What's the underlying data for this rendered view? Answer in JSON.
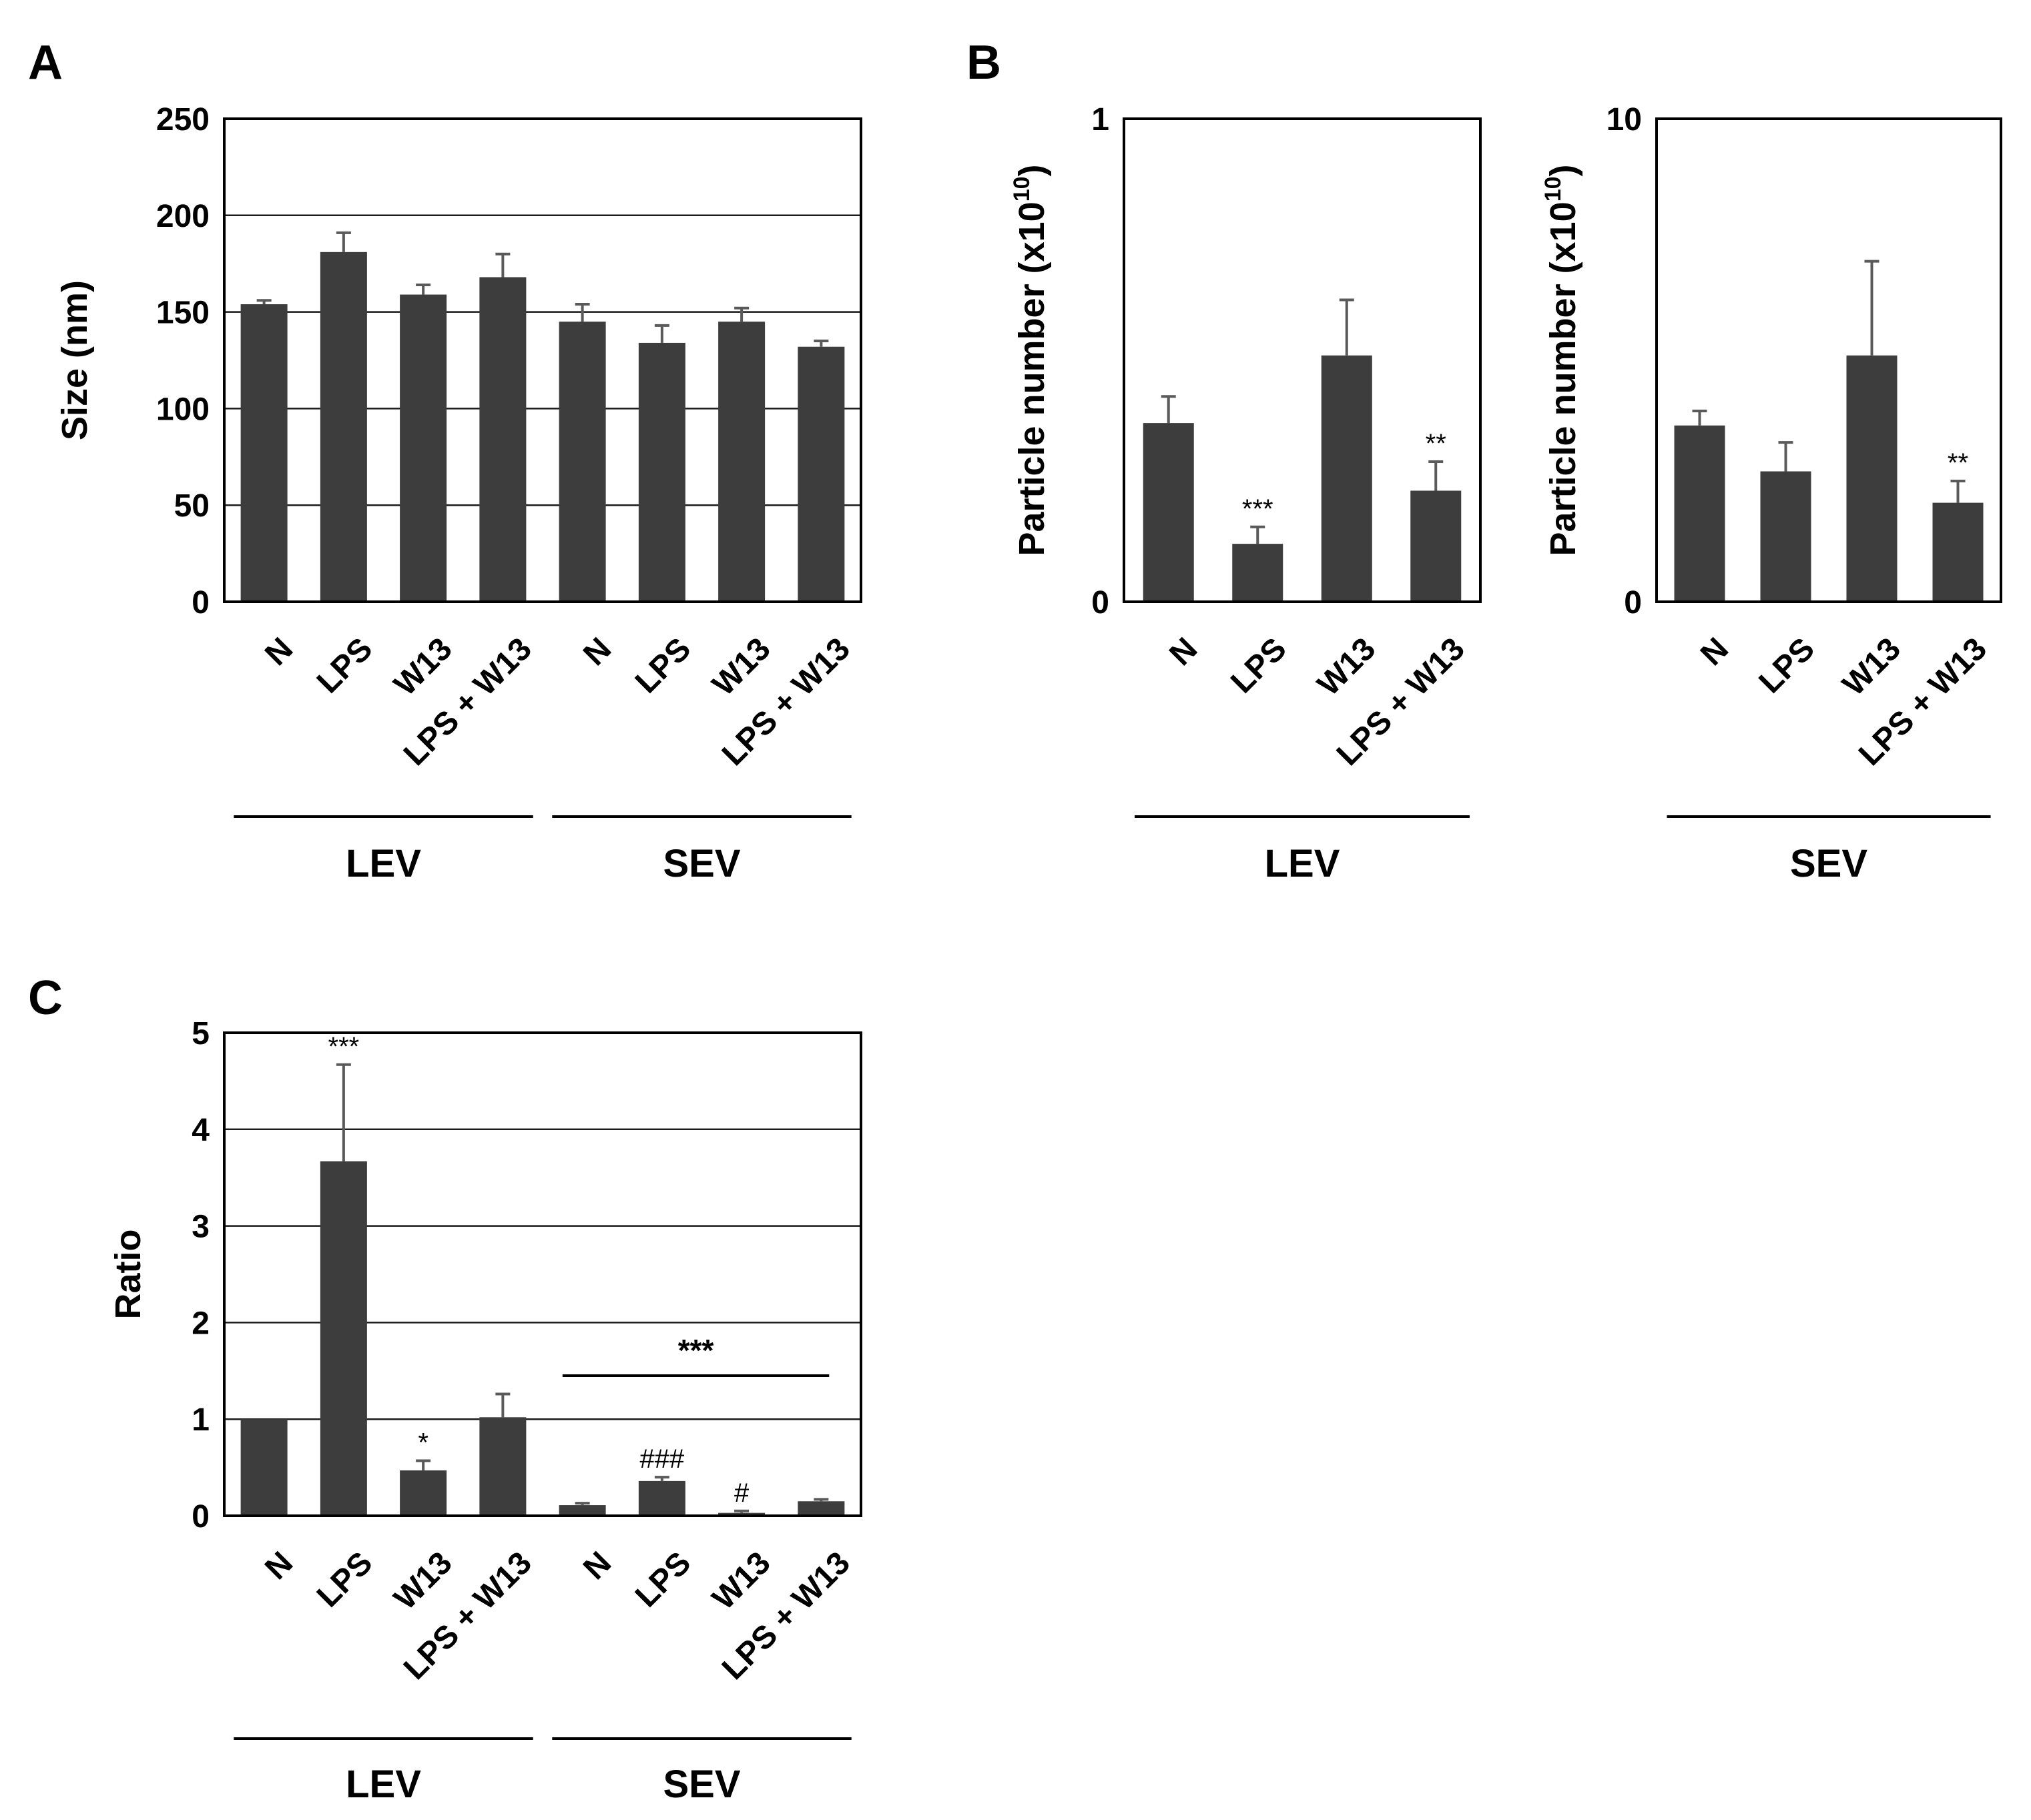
{
  "colors": {
    "bar": "#3d3d3d",
    "error_bar": "#5a5a5a",
    "frame": "#000000",
    "gridline": "#1a1a1a"
  },
  "panel_letters": {
    "a": "A",
    "b": "B",
    "c": "C"
  },
  "chart_data": [
    {
      "id": "A",
      "type": "bar",
      "categories": [
        "N",
        "LPS",
        "W13",
        "LPS + W13",
        "N",
        "LPS",
        "W13",
        "LPS + W13"
      ],
      "groups": [
        {
          "label": "LEV",
          "members": [
            0,
            1,
            2,
            3
          ]
        },
        {
          "label": "SEV",
          "members": [
            4,
            5,
            6,
            7
          ]
        }
      ],
      "series": [
        {
          "values": [
            154,
            181,
            159,
            168,
            145,
            134,
            145,
            132
          ],
          "errors": [
            2,
            10,
            5,
            12,
            9,
            9,
            7,
            3
          ]
        }
      ],
      "ylabel": "Size (nm)",
      "ylim": [
        0,
        250
      ],
      "yticks": [
        0,
        50,
        100,
        150,
        200,
        250
      ],
      "ytick_labels": [
        "0",
        "50",
        "100",
        "150",
        "200",
        "250"
      ],
      "gridlines": [
        50,
        100,
        150,
        200
      ],
      "annotations": []
    },
    {
      "id": "B-LEV",
      "type": "bar",
      "categories": [
        "N",
        "LPS",
        "W13",
        "LPS + W13"
      ],
      "groups": [
        {
          "label": "LEV",
          "members": [
            0,
            1,
            2,
            3
          ]
        }
      ],
      "series": [
        {
          "values": [
            0.37,
            0.12,
            0.51,
            0.23
          ],
          "errors": [
            0.055,
            0.035,
            0.115,
            0.06
          ]
        }
      ],
      "ylabel": "Particle number (x10",
      "ylabel_sup": "10",
      "ylabel_end": ")",
      "ylim": [
        0,
        1
      ],
      "yticks": [
        0,
        1
      ],
      "ytick_labels": [
        "0",
        "1"
      ],
      "gridlines": [],
      "annotations": [
        {
          "bar": 1,
          "text": "***"
        },
        {
          "bar": 3,
          "text": "**"
        }
      ]
    },
    {
      "id": "B-SEV",
      "type": "bar",
      "categories": [
        "N",
        "LPS",
        "W13",
        "LPS + W13"
      ],
      "groups": [
        {
          "label": "SEV",
          "members": [
            0,
            1,
            2,
            3
          ]
        }
      ],
      "series": [
        {
          "values": [
            3.65,
            2.7,
            5.1,
            2.05
          ],
          "errors": [
            0.3,
            0.6,
            1.95,
            0.45
          ]
        }
      ],
      "ylabel": "Particle number (x10",
      "ylabel_sup": "10",
      "ylabel_end": ")",
      "ylim": [
        0,
        10
      ],
      "yticks": [
        0,
        10
      ],
      "ytick_labels": [
        "0",
        "10"
      ],
      "gridlines": [],
      "annotations": [
        {
          "bar": 3,
          "text": "**"
        }
      ]
    },
    {
      "id": "C",
      "type": "bar",
      "categories": [
        "N",
        "LPS",
        "W13",
        "LPS + W13",
        "N",
        "LPS",
        "W13",
        "LPS + W13"
      ],
      "groups": [
        {
          "label": "LEV",
          "members": [
            0,
            1,
            2,
            3
          ]
        },
        {
          "label": "SEV",
          "members": [
            4,
            5,
            6,
            7
          ]
        }
      ],
      "series": [
        {
          "values": [
            1.0,
            3.67,
            0.47,
            1.02,
            0.11,
            0.36,
            0.03,
            0.15
          ],
          "errors": [
            0,
            1.0,
            0.1,
            0.24,
            0.02,
            0.04,
            0.02,
            0.02
          ]
        }
      ],
      "ylabel": "Ratio",
      "ylim": [
        0,
        5
      ],
      "yticks": [
        0,
        1,
        2,
        3,
        4,
        5
      ],
      "ytick_labels": [
        "0",
        "1",
        "2",
        "3",
        "4",
        "5"
      ],
      "gridlines": [
        1,
        2,
        3,
        4
      ],
      "annotations": [
        {
          "bar": 1,
          "text": "***"
        },
        {
          "bar": 2,
          "text": "*"
        },
        {
          "bar": 5,
          "text": "###"
        },
        {
          "bar": 6,
          "text": "#"
        }
      ],
      "bracket": {
        "from_bar": 4,
        "to_bar": 7,
        "y": 1.45,
        "text": "***"
      }
    }
  ]
}
